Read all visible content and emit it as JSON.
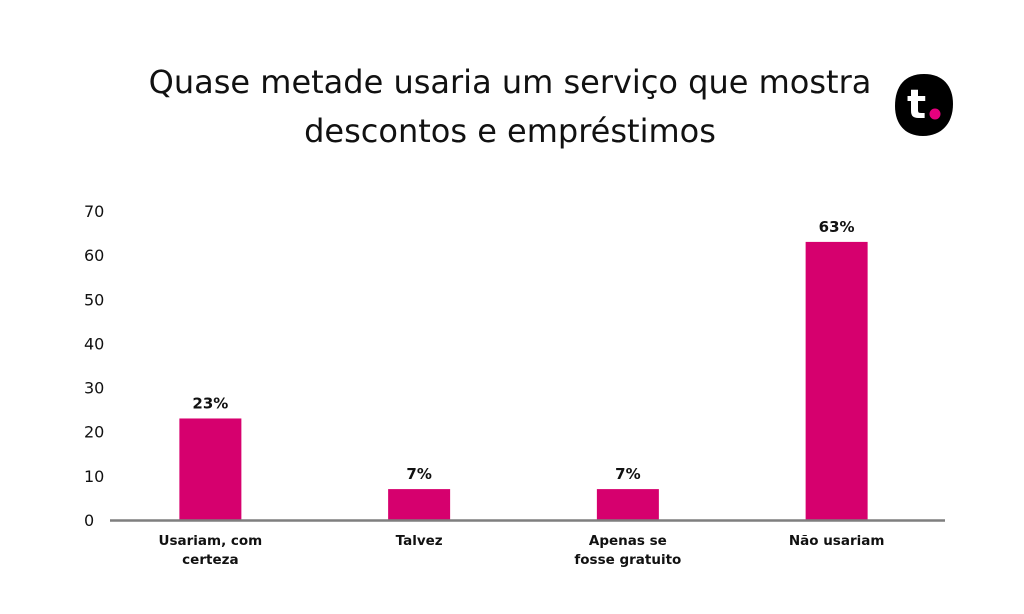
{
  "chart_data": {
    "type": "bar",
    "title_lines": [
      "Quase metade usaria um serviço que mostra",
      "descontos e empréstimos"
    ],
    "categories": [
      [
        "Usariam, com",
        "certeza"
      ],
      [
        "Talvez"
      ],
      [
        "Apenas se",
        "fosse gratuito"
      ],
      [
        "Não usariam"
      ]
    ],
    "values": [
      23,
      7,
      7,
      63
    ],
    "data_labels": [
      "23%",
      "7%",
      "7%",
      "63%"
    ],
    "yticks": [
      0,
      10,
      20,
      30,
      40,
      50,
      60,
      70
    ],
    "ylim": [
      0,
      70
    ],
    "grid": false,
    "legend": "none",
    "bar_color": "#D6006E",
    "axis_color": "#7F7F7F"
  },
  "logo": {
    "text": "t",
    "background": "#000000",
    "dot_color": "#E6007E"
  }
}
